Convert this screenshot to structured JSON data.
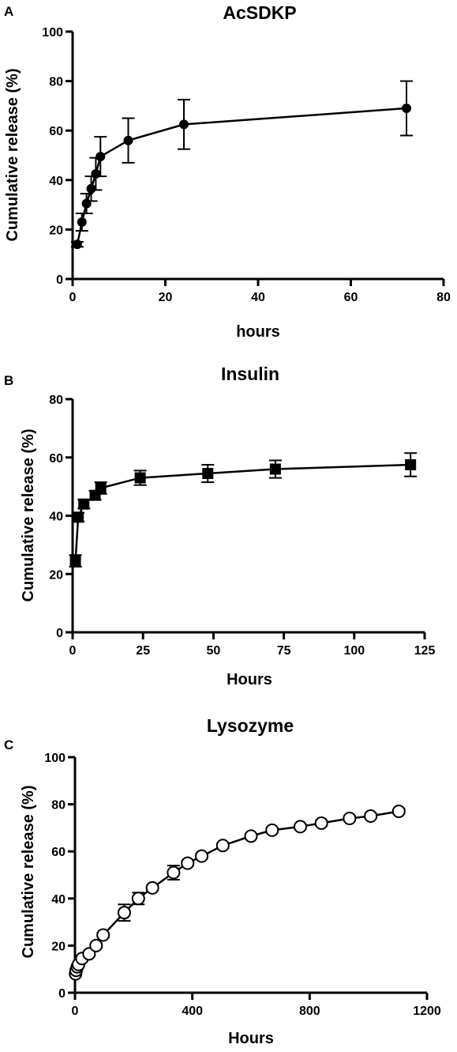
{
  "chart_data": [
    {
      "panel": "A",
      "type": "line",
      "title": "AcSDKP",
      "xlabel": "hours",
      "ylabel": "Cumulative release (%)",
      "xlim": [
        0,
        80
      ],
      "ylim": [
        0,
        100
      ],
      "xticks": [
        "0",
        "20",
        "40",
        "60",
        "80"
      ],
      "yticks": [
        "0",
        "20",
        "40",
        "60",
        "80",
        "100"
      ],
      "marker": "filled-circle",
      "grid": false,
      "series": [
        {
          "x": [
            1,
            2,
            3,
            4,
            5,
            6,
            12,
            24,
            72
          ],
          "y": [
            14,
            23,
            30.5,
            36.5,
            42.5,
            49.5,
            56,
            62.5,
            69
          ],
          "err": [
            1,
            3.5,
            4,
            5,
            6.5,
            8,
            9,
            10,
            11
          ]
        }
      ]
    },
    {
      "panel": "B",
      "type": "line",
      "title": "Insulin",
      "xlabel": "Hours",
      "ylabel": "Cumulative release (%)",
      "xlim": [
        0,
        125
      ],
      "ylim": [
        0,
        80
      ],
      "xticks": [
        "0",
        "25",
        "50",
        "75",
        "100",
        "125"
      ],
      "yticks": [
        "0",
        "20",
        "40",
        "60",
        "80"
      ],
      "marker": "filled-square",
      "grid": false,
      "series": [
        {
          "x": [
            1,
            2,
            4,
            8,
            10,
            24,
            48,
            72,
            120
          ],
          "y": [
            24.5,
            39.5,
            44,
            47,
            49.5,
            53,
            54.5,
            56,
            57.5
          ],
          "err": [
            2,
            1.5,
            1.5,
            1.5,
            2,
            2.5,
            3,
            3,
            4
          ]
        }
      ]
    },
    {
      "panel": "C",
      "type": "line",
      "title": "Lysozyme",
      "xlabel": "Hours",
      "ylabel": "Cumulative release (%)",
      "xlim": [
        0,
        1200
      ],
      "ylim": [
        0,
        100
      ],
      "xticks": [
        "0",
        "400",
        "800",
        "1200"
      ],
      "yticks": [
        "0",
        "20",
        "40",
        "60",
        "80",
        "100"
      ],
      "marker": "open-circle",
      "grid": false,
      "series": [
        {
          "x": [
            2,
            4,
            8,
            12,
            24,
            48,
            72,
            96,
            168,
            216,
            264,
            336,
            384,
            432,
            504,
            600,
            672,
            768,
            840,
            936,
            1008,
            1104
          ],
          "y": [
            8,
            9.5,
            11,
            12,
            14.5,
            16.5,
            20,
            24.5,
            34,
            40,
            44.5,
            51,
            55,
            58,
            62.5,
            66.5,
            69,
            70.5,
            72,
            74,
            75,
            77
          ],
          "err": [
            0.5,
            0.5,
            0.5,
            0.5,
            1,
            1,
            1,
            1,
            3.5,
            2.5,
            1,
            3,
            1,
            1,
            1,
            1,
            1,
            1,
            1,
            1,
            1,
            1
          ]
        }
      ]
    }
  ]
}
